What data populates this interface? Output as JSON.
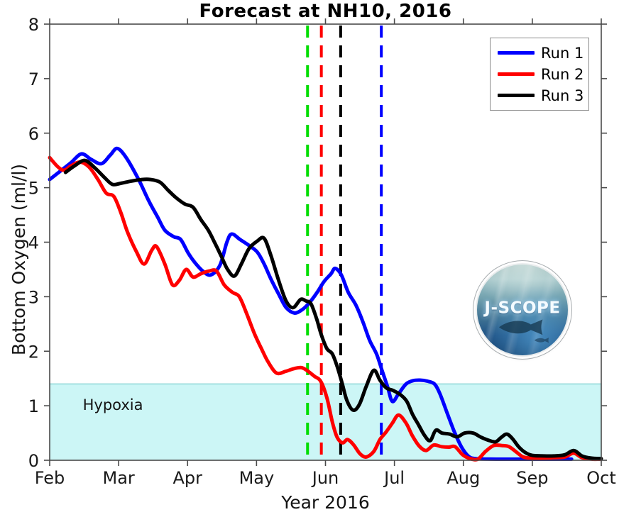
{
  "logo": {
    "text": "J-SCOPE"
  },
  "chart_data": {
    "type": "line",
    "title": "Forecast at NH10, 2016",
    "xlabel": "Year 2016",
    "ylabel": "Bottom Oxygen (ml/l)",
    "xlim": [
      2,
      10
    ],
    "ylim": [
      0,
      8
    ],
    "x_unit": "month of 2016 (decimal, 2=Feb 1)",
    "x_ticks": [
      {
        "value": 2,
        "label": "Feb"
      },
      {
        "value": 3,
        "label": "Mar"
      },
      {
        "value": 4,
        "label": "Apr"
      },
      {
        "value": 5,
        "label": "May"
      },
      {
        "value": 6,
        "label": "Jun"
      },
      {
        "value": 7,
        "label": "Jul"
      },
      {
        "value": 8,
        "label": "Aug"
      },
      {
        "value": 9,
        "label": "Sep"
      },
      {
        "value": 10,
        "label": "Oct"
      }
    ],
    "y_ticks": [
      0,
      1,
      2,
      3,
      4,
      5,
      6,
      7,
      8
    ],
    "grid": false,
    "legend_position": "top-right",
    "hypoxia_band": {
      "ymin": 0,
      "ymax": 1.4,
      "color": "#ccf6f6",
      "edge_color": "#8fd8d8",
      "label": "Hypoxia",
      "label_x": 2.48,
      "label_y": 1.0
    },
    "vlines": [
      {
        "x": 5.74,
        "color": "#00dd00",
        "style": "dashed",
        "name": "green-dashed"
      },
      {
        "x": 5.94,
        "color": "#ff0000",
        "style": "dashed",
        "name": "red-dashed"
      },
      {
        "x": 6.22,
        "color": "#000000",
        "style": "dashed",
        "name": "black-dashed"
      },
      {
        "x": 6.81,
        "color": "#0000ff",
        "style": "dashed",
        "name": "blue-dashed"
      }
    ],
    "series": [
      {
        "name": "Run 1",
        "color": "#0000ff",
        "points": [
          [
            2.0,
            5.15
          ],
          [
            2.15,
            5.3
          ],
          [
            2.31,
            5.46
          ],
          [
            2.46,
            5.62
          ],
          [
            2.6,
            5.52
          ],
          [
            2.75,
            5.44
          ],
          [
            2.88,
            5.6
          ],
          [
            2.98,
            5.72
          ],
          [
            3.11,
            5.55
          ],
          [
            3.29,
            5.15
          ],
          [
            3.44,
            4.75
          ],
          [
            3.57,
            4.45
          ],
          [
            3.67,
            4.22
          ],
          [
            3.8,
            4.1
          ],
          [
            3.9,
            4.05
          ],
          [
            4.01,
            3.8
          ],
          [
            4.11,
            3.62
          ],
          [
            4.23,
            3.46
          ],
          [
            4.34,
            3.4
          ],
          [
            4.47,
            3.58
          ],
          [
            4.57,
            4.0
          ],
          [
            4.64,
            4.15
          ],
          [
            4.76,
            4.05
          ],
          [
            4.88,
            3.95
          ],
          [
            5.01,
            3.82
          ],
          [
            5.11,
            3.6
          ],
          [
            5.21,
            3.32
          ],
          [
            5.32,
            3.05
          ],
          [
            5.43,
            2.8
          ],
          [
            5.55,
            2.7
          ],
          [
            5.66,
            2.76
          ],
          [
            5.76,
            2.88
          ],
          [
            5.88,
            3.08
          ],
          [
            5.98,
            3.28
          ],
          [
            6.08,
            3.42
          ],
          [
            6.14,
            3.52
          ],
          [
            6.23,
            3.4
          ],
          [
            6.33,
            3.08
          ],
          [
            6.44,
            2.85
          ],
          [
            6.54,
            2.55
          ],
          [
            6.64,
            2.2
          ],
          [
            6.74,
            1.95
          ],
          [
            6.82,
            1.65
          ],
          [
            6.9,
            1.35
          ],
          [
            6.97,
            1.08
          ],
          [
            7.06,
            1.22
          ],
          [
            7.17,
            1.4
          ],
          [
            7.27,
            1.46
          ],
          [
            7.37,
            1.47
          ],
          [
            7.48,
            1.45
          ],
          [
            7.58,
            1.4
          ],
          [
            7.66,
            1.22
          ],
          [
            7.77,
            0.85
          ],
          [
            7.87,
            0.52
          ],
          [
            7.97,
            0.25
          ],
          [
            8.07,
            0.08
          ],
          [
            8.18,
            0.03
          ],
          [
            8.5,
            0.02
          ],
          [
            9.0,
            0.02
          ],
          [
            9.57,
            0.02
          ]
        ]
      },
      {
        "name": "Run 2",
        "color": "#ff0000",
        "points": [
          [
            2.0,
            5.55
          ],
          [
            2.12,
            5.38
          ],
          [
            2.21,
            5.32
          ],
          [
            2.31,
            5.4
          ],
          [
            2.44,
            5.47
          ],
          [
            2.57,
            5.38
          ],
          [
            2.7,
            5.15
          ],
          [
            2.82,
            4.9
          ],
          [
            2.93,
            4.84
          ],
          [
            3.03,
            4.55
          ],
          [
            3.13,
            4.18
          ],
          [
            3.26,
            3.82
          ],
          [
            3.37,
            3.6
          ],
          [
            3.48,
            3.85
          ],
          [
            3.55,
            3.92
          ],
          [
            3.67,
            3.6
          ],
          [
            3.78,
            3.22
          ],
          [
            3.88,
            3.3
          ],
          [
            3.98,
            3.5
          ],
          [
            4.08,
            3.36
          ],
          [
            4.19,
            3.42
          ],
          [
            4.31,
            3.47
          ],
          [
            4.42,
            3.47
          ],
          [
            4.53,
            3.22
          ],
          [
            4.65,
            3.08
          ],
          [
            4.75,
            3.0
          ],
          [
            4.86,
            2.68
          ],
          [
            4.97,
            2.32
          ],
          [
            5.07,
            2.05
          ],
          [
            5.17,
            1.8
          ],
          [
            5.29,
            1.6
          ],
          [
            5.42,
            1.63
          ],
          [
            5.54,
            1.68
          ],
          [
            5.65,
            1.7
          ],
          [
            5.74,
            1.64
          ],
          [
            5.84,
            1.54
          ],
          [
            5.93,
            1.45
          ],
          [
            6.02,
            1.15
          ],
          [
            6.1,
            0.7
          ],
          [
            6.17,
            0.42
          ],
          [
            6.25,
            0.32
          ],
          [
            6.32,
            0.38
          ],
          [
            6.41,
            0.28
          ],
          [
            6.5,
            0.12
          ],
          [
            6.59,
            0.06
          ],
          [
            6.7,
            0.16
          ],
          [
            6.79,
            0.38
          ],
          [
            6.88,
            0.52
          ],
          [
            6.97,
            0.68
          ],
          [
            7.06,
            0.83
          ],
          [
            7.17,
            0.68
          ],
          [
            7.26,
            0.45
          ],
          [
            7.36,
            0.26
          ],
          [
            7.46,
            0.18
          ],
          [
            7.57,
            0.28
          ],
          [
            7.68,
            0.25
          ],
          [
            7.79,
            0.24
          ],
          [
            7.88,
            0.25
          ],
          [
            7.99,
            0.1
          ],
          [
            8.1,
            0.03
          ],
          [
            8.21,
            0.02
          ],
          [
            8.32,
            0.16
          ],
          [
            8.44,
            0.27
          ],
          [
            8.56,
            0.27
          ],
          [
            8.66,
            0.25
          ],
          [
            8.77,
            0.15
          ],
          [
            8.87,
            0.06
          ],
          [
            9.0,
            0.04
          ],
          [
            9.16,
            0.04
          ],
          [
            9.31,
            0.05
          ],
          [
            9.47,
            0.06
          ],
          [
            9.6,
            0.13
          ],
          [
            9.72,
            0.05
          ],
          [
            9.88,
            0.02
          ],
          [
            9.98,
            0.02
          ]
        ]
      },
      {
        "name": "Run 3",
        "color": "#000000",
        "points": [
          [
            2.23,
            5.28
          ],
          [
            2.36,
            5.4
          ],
          [
            2.51,
            5.5
          ],
          [
            2.65,
            5.37
          ],
          [
            2.8,
            5.18
          ],
          [
            2.91,
            5.06
          ],
          [
            3.03,
            5.08
          ],
          [
            3.18,
            5.12
          ],
          [
            3.34,
            5.15
          ],
          [
            3.46,
            5.15
          ],
          [
            3.6,
            5.1
          ],
          [
            3.72,
            4.95
          ],
          [
            3.83,
            4.82
          ],
          [
            3.96,
            4.7
          ],
          [
            4.08,
            4.64
          ],
          [
            4.19,
            4.42
          ],
          [
            4.3,
            4.22
          ],
          [
            4.39,
            4.0
          ],
          [
            4.49,
            3.74
          ],
          [
            4.58,
            3.5
          ],
          [
            4.68,
            3.38
          ],
          [
            4.78,
            3.6
          ],
          [
            4.89,
            3.88
          ],
          [
            5.01,
            4.02
          ],
          [
            5.11,
            4.07
          ],
          [
            5.21,
            3.75
          ],
          [
            5.32,
            3.3
          ],
          [
            5.43,
            2.92
          ],
          [
            5.53,
            2.8
          ],
          [
            5.64,
            2.95
          ],
          [
            5.72,
            2.92
          ],
          [
            5.79,
            2.87
          ],
          [
            5.87,
            2.6
          ],
          [
            5.94,
            2.3
          ],
          [
            6.02,
            2.05
          ],
          [
            6.1,
            1.95
          ],
          [
            6.17,
            1.72
          ],
          [
            6.24,
            1.42
          ],
          [
            6.31,
            1.1
          ],
          [
            6.4,
            0.92
          ],
          [
            6.49,
            1.02
          ],
          [
            6.59,
            1.35
          ],
          [
            6.7,
            1.65
          ],
          [
            6.79,
            1.47
          ],
          [
            6.88,
            1.33
          ],
          [
            6.98,
            1.28
          ],
          [
            7.09,
            1.2
          ],
          [
            7.18,
            1.08
          ],
          [
            7.26,
            0.85
          ],
          [
            7.35,
            0.65
          ],
          [
            7.44,
            0.45
          ],
          [
            7.52,
            0.36
          ],
          [
            7.6,
            0.55
          ],
          [
            7.69,
            0.5
          ],
          [
            7.8,
            0.48
          ],
          [
            7.91,
            0.43
          ],
          [
            8.02,
            0.5
          ],
          [
            8.14,
            0.5
          ],
          [
            8.26,
            0.42
          ],
          [
            8.38,
            0.36
          ],
          [
            8.47,
            0.34
          ],
          [
            8.55,
            0.42
          ],
          [
            8.63,
            0.48
          ],
          [
            8.71,
            0.4
          ],
          [
            8.8,
            0.25
          ],
          [
            8.9,
            0.14
          ],
          [
            9.0,
            0.09
          ],
          [
            9.16,
            0.08
          ],
          [
            9.31,
            0.08
          ],
          [
            9.47,
            0.1
          ],
          [
            9.6,
            0.18
          ],
          [
            9.72,
            0.08
          ],
          [
            9.85,
            0.04
          ],
          [
            10.0,
            0.03
          ]
        ]
      }
    ]
  }
}
